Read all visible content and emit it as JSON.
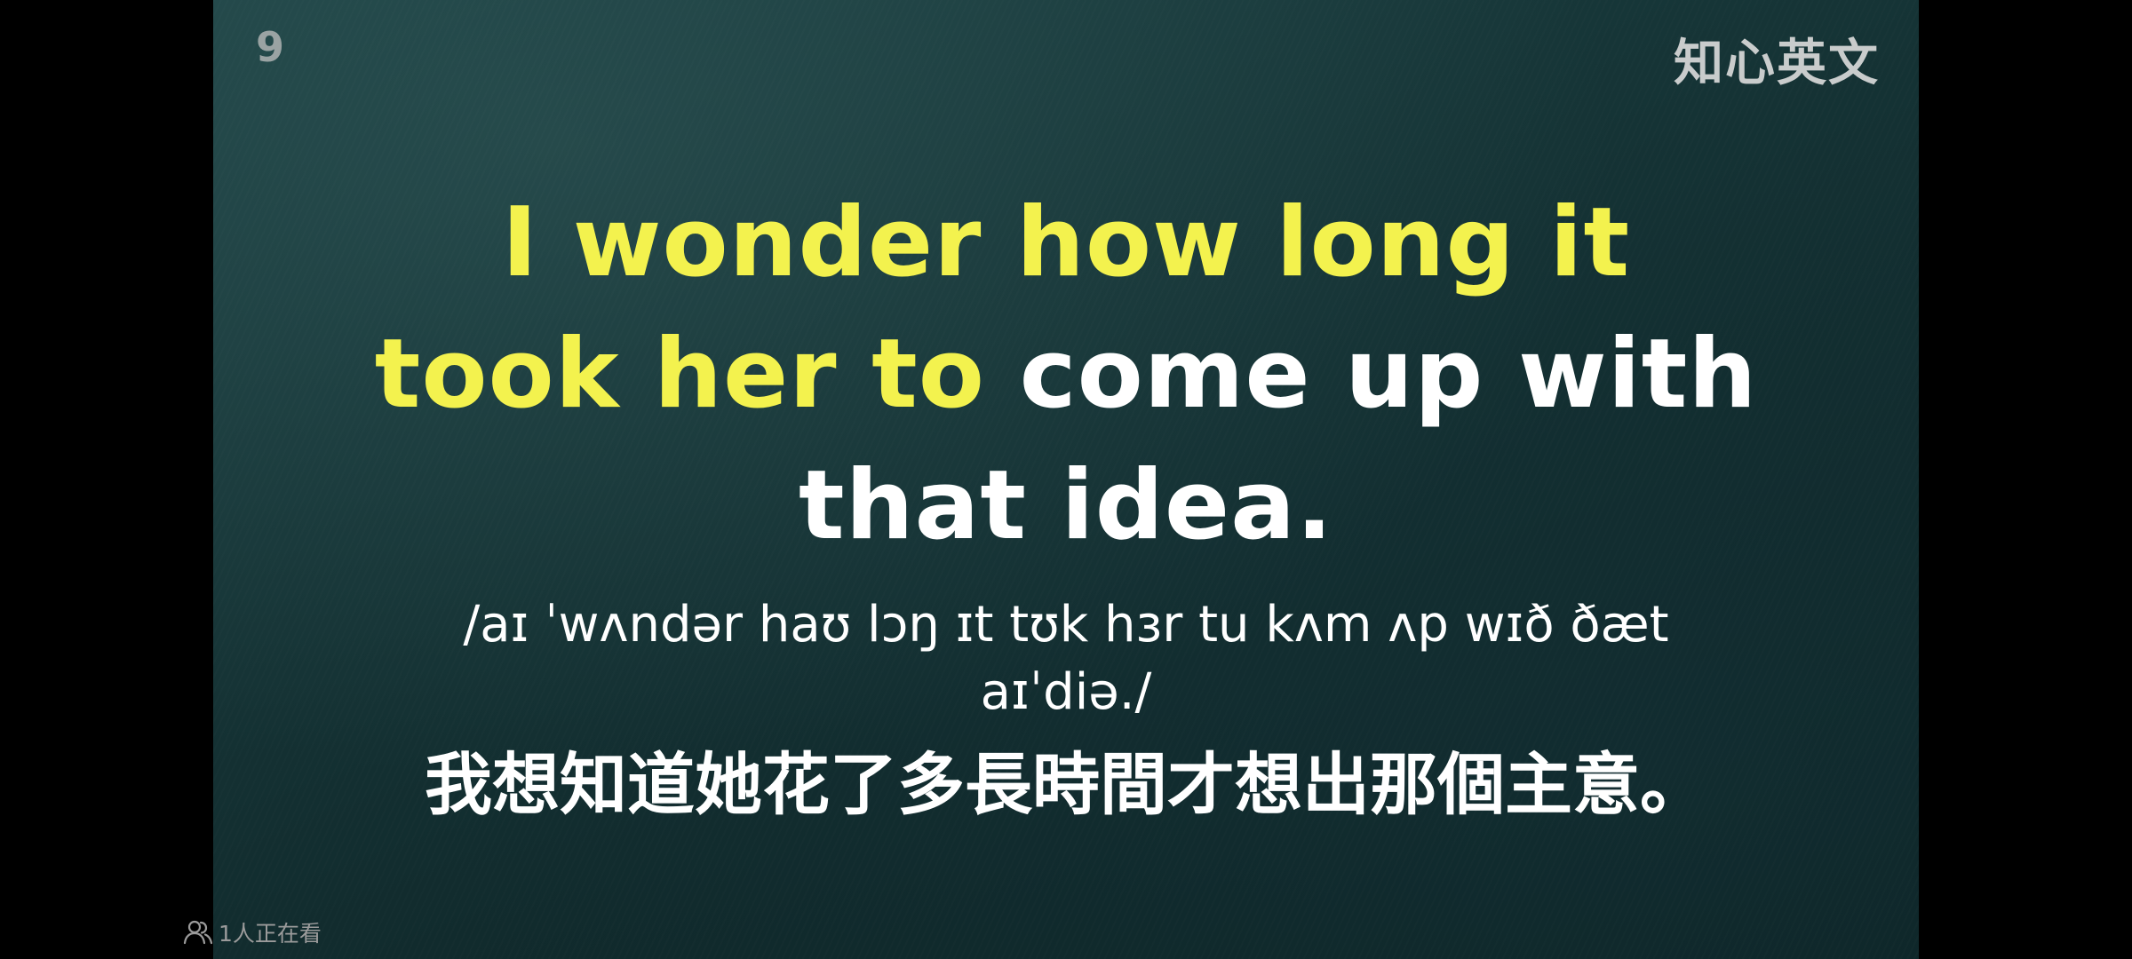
{
  "video": {
    "episode_number": "9",
    "channel_logo": "知心英文",
    "sentence": {
      "highlighted_line1": "I wonder how long it",
      "highlighted_line2": "took her to",
      "plain_line2": "come up with",
      "plain_line3": "that idea."
    },
    "ipa": {
      "line1": "/aɪ ˈwʌndər haʊ lɔŋ ɪt tʊk hɜr tu kʌm ʌp wɪð ðæt",
      "line2": "aɪˈdiə./"
    },
    "translation": "我想知道她花了多長時間才想出那個主意。"
  },
  "overlay": {
    "viewer_icon": "people-icon",
    "viewer_count": "1人正在看"
  },
  "colors": {
    "highlight": "#f3f24e",
    "text": "#ffffff",
    "background": "#163537"
  }
}
